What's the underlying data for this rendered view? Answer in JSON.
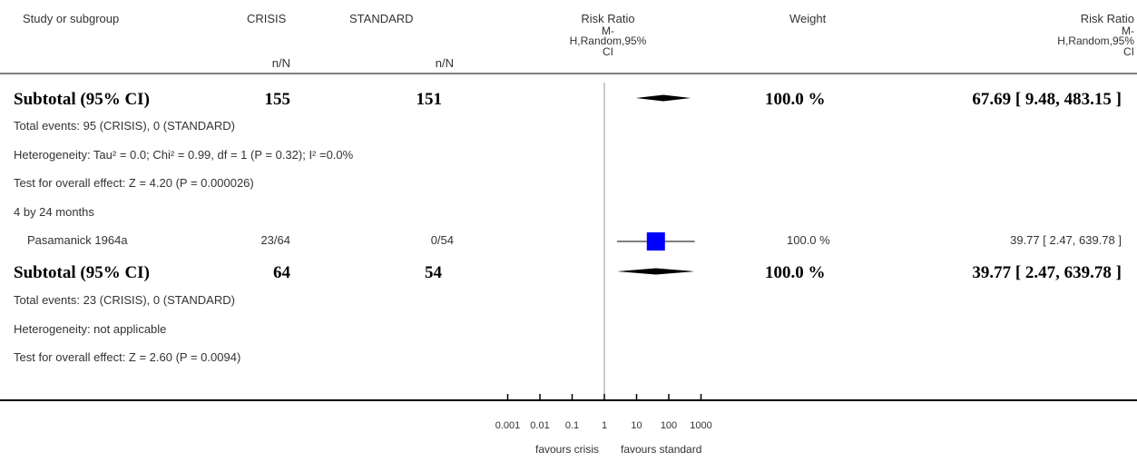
{
  "header": {
    "study": "Study or subgroup",
    "crisis": "CRISIS",
    "standard": "STANDARD",
    "rr_title": "Risk Ratio",
    "rr_sub1": "M-",
    "rr_sub2": "H,Random,95%",
    "rr_sub3": "CI",
    "weight": "Weight",
    "rr2_title": "Risk Ratio",
    "rr2_sub1": "M-",
    "rr2_sub2": "H,Random,95%",
    "rr2_sub3": "CI",
    "nN1": "n/N",
    "nN2": "n/N"
  },
  "subtotal1": {
    "label": "Subtotal (95% CI)",
    "crisis": "155",
    "standard": "151",
    "weight": "100.0 %",
    "rr": "67.69 [ 9.48, 483.15 ]"
  },
  "notes1": {
    "events": "Total events: 95 (CRISIS), 0 (STANDARD)",
    "heterogeneity": "Heterogeneity: Tau² = 0.0; Chi² = 0.99, df = 1 (P = 0.32); I² =0.0%",
    "overall": "Test for overall effect: Z = 4.20 (P = 0.000026)"
  },
  "subgroup2": {
    "label": "4 by 24 months"
  },
  "study1": {
    "name": "Pasamanick 1964a",
    "crisis": "23/64",
    "standard": "0/54",
    "weight": "100.0 %",
    "rr": "39.77 [ 2.47, 639.78 ]"
  },
  "subtotal2": {
    "label": "Subtotal (95% CI)",
    "crisis": "64",
    "standard": "54",
    "weight": "100.0 %",
    "rr": "39.77 [ 2.47, 639.78 ]"
  },
  "notes2": {
    "events": "Total events: 23 (CRISIS), 0 (STANDARD)",
    "heterogeneity": "Heterogeneity: not applicable",
    "overall": "Test for overall effect: Z = 2.60 (P = 0.0094)"
  },
  "axis": {
    "favours_left": "favours crisis",
    "favours_right": "favours standard"
  },
  "colors": {
    "study_marker": "#0000ff",
    "summary": "#000000",
    "line": "#000000",
    "ref_line": "#999999"
  },
  "chart_data": {
    "type": "forest",
    "scale": "log",
    "xlim": [
      0.001,
      1000
    ],
    "ticks": [
      0.001,
      0.01,
      0.1,
      1,
      10,
      100,
      1000
    ],
    "tick_labels": [
      "0.001",
      "0.01",
      "0.1",
      "1",
      "10",
      "100",
      "1000"
    ],
    "rows": [
      {
        "name": "Subtotal (95% CI)",
        "kind": "summary",
        "estimate": 67.69,
        "lower": 9.48,
        "upper": 483.15,
        "weight": 100.0
      },
      {
        "name": "Pasamanick 1964a",
        "kind": "study",
        "estimate": 39.77,
        "lower": 2.47,
        "upper": 639.78,
        "weight": 100.0
      },
      {
        "name": "Subtotal (95% CI)",
        "kind": "summary",
        "estimate": 39.77,
        "lower": 2.47,
        "upper": 639.78,
        "weight": 100.0
      }
    ]
  }
}
